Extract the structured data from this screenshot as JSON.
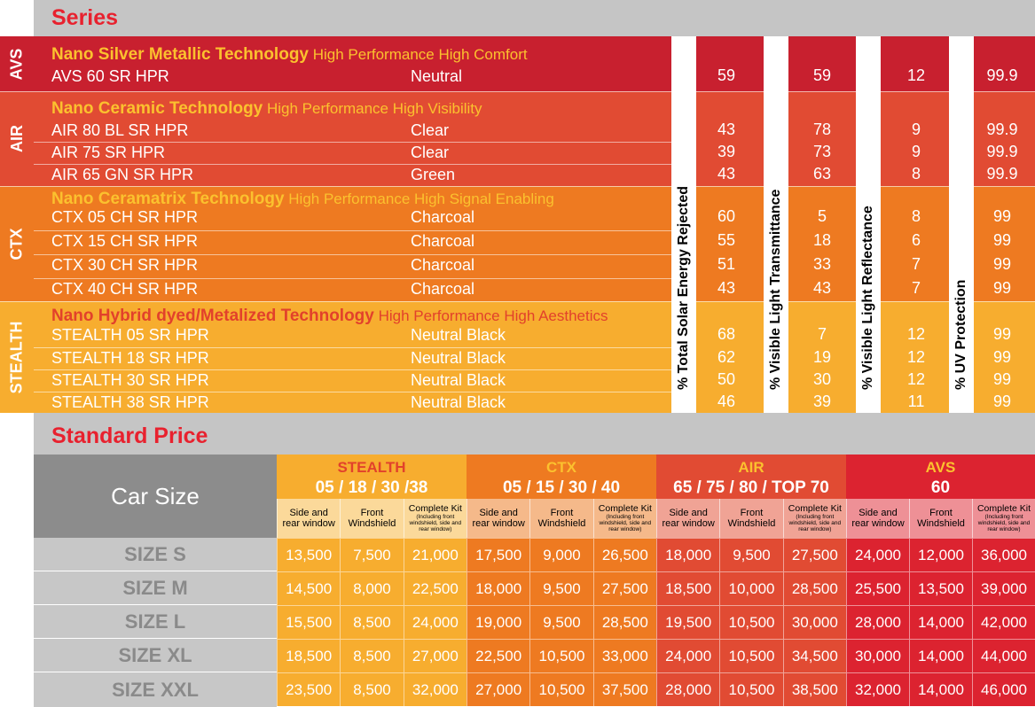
{
  "series_header": "Series",
  "metric_labels": [
    "% Total Solar Energy Rejected",
    "% Visible Light Transmittance",
    "% Visible Light Reflectance",
    "% UV Protection"
  ],
  "groups": [
    {
      "tag": "AVS",
      "tech": "Nano Silver Metallic Technology",
      "tagline": "High Performance High Comfort",
      "color": "#c8202f",
      "accent": "#fbc12e",
      "products": [
        {
          "name": "AVS 60 SR HPR",
          "color": "Neutral",
          "values": [
            "59",
            "59",
            "12",
            "99.9"
          ]
        }
      ]
    },
    {
      "tag": "AIR",
      "tech": "Nano Ceramic Technology",
      "tagline": "High Performance High Visibility",
      "color": "#e14b33",
      "accent": "#fbc12e",
      "products": [
        {
          "name": "AIR 80 BL SR HPR",
          "color": "Clear",
          "values": [
            "43",
            "78",
            "9",
            "99.9"
          ]
        },
        {
          "name": "AIR 75 SR HPR",
          "color": "Clear",
          "values": [
            "39",
            "73",
            "9",
            "99.9"
          ]
        },
        {
          "name": "AIR 65 GN SR HPR",
          "color": "Green",
          "values": [
            "43",
            "63",
            "8",
            "99.9"
          ]
        }
      ]
    },
    {
      "tag": "CTX",
      "tech": "Nano Ceramatrix Technology",
      "tagline": "High Performance High Signal Enabling",
      "color": "#ee7a21",
      "accent": "#fbc12e",
      "products": [
        {
          "name": "CTX 05 CH SR HPR",
          "color": "Charcoal",
          "values": [
            "60",
            "5",
            "8",
            "99"
          ]
        },
        {
          "name": "CTX 15 CH SR HPR",
          "color": "Charcoal",
          "values": [
            "55",
            "18",
            "6",
            "99"
          ]
        },
        {
          "name": "CTX 30 CH SR HPR",
          "color": "Charcoal",
          "values": [
            "51",
            "33",
            "7",
            "99"
          ]
        },
        {
          "name": "CTX 40 CH SR HPR",
          "color": "Charcoal",
          "values": [
            "43",
            "43",
            "7",
            "99"
          ]
        }
      ]
    },
    {
      "tag": "STEALTH",
      "tech": "Nano Hybrid dyed/Metalized Technology",
      "tagline": "High Performance High Aesthetics",
      "color": "#f7ad2f",
      "accent": "#e2412b",
      "products": [
        {
          "name": "STEALTH 05 SR HPR",
          "color": "Neutral Black",
          "values": [
            "68",
            "7",
            "12",
            "99"
          ]
        },
        {
          "name": "STEALTH 18 SR HPR",
          "color": "Neutral Black",
          "values": [
            "62",
            "19",
            "12",
            "99"
          ]
        },
        {
          "name": "STEALTH 30 SR HPR",
          "color": "Neutral Black",
          "values": [
            "50",
            "30",
            "12",
            "99"
          ]
        },
        {
          "name": "STEALTH 38 SR HPR",
          "color": "Neutral Black",
          "values": [
            "46",
            "39",
            "11",
            "99"
          ]
        }
      ]
    }
  ],
  "price_header": "Standard Price",
  "car_size_label": "Car Size",
  "price_groups": [
    {
      "name": "STEALTH",
      "models": "05 / 18 / 30 /38",
      "name_color": "#e2412b",
      "bg": "#f7ad2f",
      "sub_bg": "#fbd99a",
      "cell_bg": "#f7ad2f"
    },
    {
      "name": "CTX",
      "models": "05 / 15 / 30 / 40",
      "name_color": "#fbc12e",
      "bg": "#ee7a21",
      "sub_bg": "#f5b98a",
      "cell_bg": "#ee7a21"
    },
    {
      "name": "AIR",
      "models": "65 / 75 / 80 / TOP 70",
      "name_color": "#fbc12e",
      "bg": "#e14b33",
      "sub_bg": "#f0a395",
      "cell_bg": "#e14b33"
    },
    {
      "name": "AVS",
      "models": "60",
      "name_color": "#fbc12e",
      "bg": "#dc2330",
      "sub_bg": "#ee9096",
      "cell_bg": "#dc2330"
    }
  ],
  "sub_cols": [
    {
      "line1": "Side and",
      "line2": "rear window",
      "note": ""
    },
    {
      "line1": "Front",
      "line2": "Windshield",
      "note": ""
    },
    {
      "line1": "Complete Kit",
      "line2": "",
      "note": "(Including front windshield, side and rear window)"
    }
  ],
  "sizes": [
    {
      "label": "SIZE S",
      "prices": [
        "13,500",
        "7,500",
        "21,000",
        "17,500",
        "9,000",
        "26,500",
        "18,000",
        "9,500",
        "27,500",
        "24,000",
        "12,000",
        "36,000"
      ]
    },
    {
      "label": "SIZE M",
      "prices": [
        "14,500",
        "8,000",
        "22,500",
        "18,000",
        "9,500",
        "27,500",
        "18,500",
        "10,000",
        "28,500",
        "25,500",
        "13,500",
        "39,000"
      ]
    },
    {
      "label": "SIZE L",
      "prices": [
        "15,500",
        "8,500",
        "24,000",
        "19,000",
        "9,500",
        "28,500",
        "19,500",
        "10,500",
        "30,000",
        "28,000",
        "14,000",
        "42,000"
      ]
    },
    {
      "label": "SIZE XL",
      "prices": [
        "18,500",
        "8,500",
        "27,000",
        "22,500",
        "10,500",
        "33,000",
        "24,000",
        "10,500",
        "34,500",
        "30,000",
        "14,000",
        "44,000"
      ]
    },
    {
      "label": "SIZE XXL",
      "prices": [
        "23,500",
        "8,500",
        "32,000",
        "27,000",
        "10,500",
        "37,500",
        "28,000",
        "10,500",
        "38,500",
        "32,000",
        "14,000",
        "46,000"
      ]
    }
  ]
}
